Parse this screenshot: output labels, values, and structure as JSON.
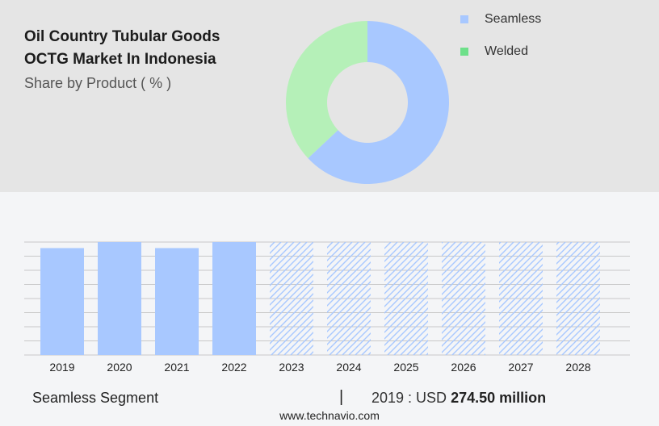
{
  "title_lines": [
    "Oil Country Tubular Goods",
    "OCTG Market In Indonesia"
  ],
  "subtitle": "Share by Product ( % )",
  "colors": {
    "seamless": "#a8c8ff",
    "welded": "#b5f0b8",
    "legend_welded": "#6ee08a",
    "grid": "#c8c8c8",
    "top_panel": "#e5e5e5"
  },
  "chart_data": [
    {
      "type": "pie",
      "donut": true,
      "title": "Share by Product ( % )",
      "slices": [
        {
          "label": "Seamless",
          "value": 63
        },
        {
          "label": "Welded",
          "value": 37
        }
      ],
      "legend": {
        "placement": "top-right",
        "entries": [
          "Seamless",
          "Welded"
        ]
      }
    },
    {
      "type": "bar",
      "categories": [
        "2019",
        "2020",
        "2021",
        "2022",
        "2023",
        "2024",
        "2025",
        "2026",
        "2027",
        "2028"
      ],
      "series": [
        {
          "name": "Seamless",
          "values": [
            274.5,
            290,
            274.5,
            290,
            290,
            290,
            290,
            290,
            290,
            290
          ],
          "forecast_from": "2023"
        }
      ],
      "ylim": [
        0,
        290
      ],
      "grid": true,
      "xlabel": "",
      "ylabel": ""
    }
  ],
  "footer": {
    "segment": "Seamless Segment",
    "separator": "|",
    "year_label": "2019 : USD",
    "value": "274.50 million"
  },
  "source": "www.technavio.com"
}
